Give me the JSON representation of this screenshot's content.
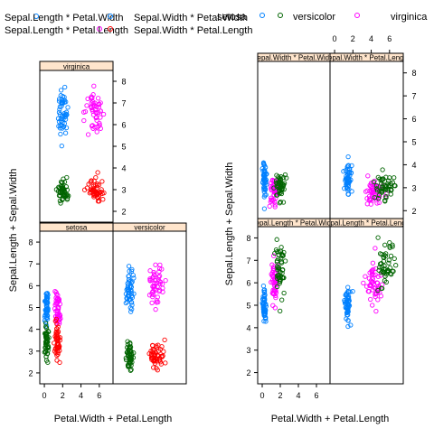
{
  "colors": {
    "blue": "#0080ff",
    "magenta": "#ff00ff",
    "green": "#006400",
    "red": "#ff0000",
    "strip_bg": "#ffe5cc",
    "frame": "#000000"
  },
  "legend_left": {
    "entries": [
      {
        "label": "Sepal.Length * Petal.Width",
        "color": "#0080ff"
      },
      {
        "label": "Sepal.Width * Petal.Width",
        "color": "#0080ff"
      },
      {
        "label": "Sepal.Length * Petal.Length",
        "color": "#ff00ff"
      },
      {
        "label": "Sepal.Width * Petal.Length",
        "color": "#ff0000"
      }
    ]
  },
  "legend_right": {
    "entries": [
      {
        "label": "setosa",
        "color": "#0080ff"
      },
      {
        "label": "versicolor",
        "color": "#006400"
      },
      {
        "label": "virginica",
        "color": "#ff00ff"
      }
    ]
  },
  "chart_data": [
    {
      "type": "scatter",
      "xlabel": "Petal.Width + Petal.Length",
      "ylabel": "Sepal.Length + Sepal.Width",
      "xlim": [
        -0.5,
        7.5
      ],
      "ylim": [
        1.5,
        8.5
      ],
      "xticks": [
        0,
        2,
        4,
        6
      ],
      "yticks": [
        2,
        3,
        4,
        5,
        6,
        7,
        8
      ],
      "panels": [
        {
          "strip": "virginica",
          "groups": [
            {
              "name": "Sepal.Length * Petal.Width",
              "color": "#0080ff",
              "x_mean": 2.0,
              "x_sd": 0.27,
              "y_mean": 6.6,
              "y_sd": 0.6
            },
            {
              "name": "Sepal.Length * Petal.Length",
              "color": "#ff00ff",
              "x_mean": 5.5,
              "x_sd": 0.5,
              "y_mean": 6.6,
              "y_sd": 0.6
            },
            {
              "name": "Sepal.Width * Petal.Width",
              "color": "#006400",
              "x_mean": 2.0,
              "x_sd": 0.27,
              "y_mean": 3.0,
              "y_sd": 0.3
            },
            {
              "name": "Sepal.Width * Petal.Length",
              "color": "#ff0000",
              "x_mean": 5.5,
              "x_sd": 0.5,
              "y_mean": 3.0,
              "y_sd": 0.3
            }
          ]
        },
        {
          "strip": "setosa",
          "groups": [
            {
              "name": "Sepal.Length * Petal.Width",
              "color": "#0080ff",
              "x_mean": 0.25,
              "x_sd": 0.1,
              "y_mean": 5.0,
              "y_sd": 0.35
            },
            {
              "name": "Sepal.Length * Petal.Length",
              "color": "#ff00ff",
              "x_mean": 1.46,
              "x_sd": 0.17,
              "y_mean": 5.0,
              "y_sd": 0.35
            },
            {
              "name": "Sepal.Width * Petal.Width",
              "color": "#006400",
              "x_mean": 0.25,
              "x_sd": 0.1,
              "y_mean": 3.4,
              "y_sd": 0.38
            },
            {
              "name": "Sepal.Width * Petal.Length",
              "color": "#ff0000",
              "x_mean": 1.46,
              "x_sd": 0.17,
              "y_mean": 3.4,
              "y_sd": 0.38
            }
          ]
        },
        {
          "strip": "versicolor",
          "groups": [
            {
              "name": "Sepal.Length * Petal.Width",
              "color": "#0080ff",
              "x_mean": 1.33,
              "x_sd": 0.2,
              "y_mean": 5.9,
              "y_sd": 0.5
            },
            {
              "name": "Sepal.Length * Petal.Length",
              "color": "#ff00ff",
              "x_mean": 4.26,
              "x_sd": 0.47,
              "y_mean": 5.9,
              "y_sd": 0.5
            },
            {
              "name": "Sepal.Width * Petal.Width",
              "color": "#006400",
              "x_mean": 1.33,
              "x_sd": 0.2,
              "y_mean": 2.77,
              "y_sd": 0.3
            },
            {
              "name": "Sepal.Width * Petal.Length",
              "color": "#ff0000",
              "x_mean": 4.26,
              "x_sd": 0.47,
              "y_mean": 2.77,
              "y_sd": 0.3
            }
          ]
        }
      ]
    },
    {
      "type": "scatter",
      "xlabel": "Petal.Width + Petal.Length",
      "ylabel": "Sepal.Length + Sepal.Width",
      "xlim": [
        -0.5,
        7.5
      ],
      "ylim": [
        1.5,
        8.5
      ],
      "xticks": [
        0,
        2,
        4,
        6
      ],
      "yticks": [
        2,
        3,
        4,
        5,
        6,
        7,
        8
      ],
      "panels": [
        {
          "strip": "Sepal.Width * Petal.Width",
          "groups": [
            {
              "name": "setosa",
              "color": "#0080ff",
              "x_mean": 0.25,
              "x_sd": 0.1,
              "y_mean": 3.4,
              "y_sd": 0.38
            },
            {
              "name": "virginica",
              "color": "#ff00ff",
              "x_mean": 1.33,
              "x_sd": 0.2,
              "y_mean": 2.77,
              "y_sd": 0.3
            },
            {
              "name": "versicolor",
              "color": "#006400",
              "x_mean": 2.0,
              "x_sd": 0.27,
              "y_mean": 3.0,
              "y_sd": 0.3
            }
          ]
        },
        {
          "strip": "Sepal.Width * Petal.Length",
          "groups": [
            {
              "name": "setosa",
              "color": "#0080ff",
              "x_mean": 1.46,
              "x_sd": 0.17,
              "y_mean": 3.4,
              "y_sd": 0.38
            },
            {
              "name": "virginica",
              "color": "#ff00ff",
              "x_mean": 4.26,
              "x_sd": 0.47,
              "y_mean": 2.77,
              "y_sd": 0.3
            },
            {
              "name": "versicolor",
              "color": "#006400",
              "x_mean": 5.55,
              "x_sd": 0.55,
              "y_mean": 3.0,
              "y_sd": 0.3
            }
          ]
        },
        {
          "strip": "Sepal.Length * Petal.Width",
          "groups": [
            {
              "name": "setosa",
              "color": "#0080ff",
              "x_mean": 0.25,
              "x_sd": 0.1,
              "y_mean": 5.0,
              "y_sd": 0.35
            },
            {
              "name": "virginica",
              "color": "#ff00ff",
              "x_mean": 1.33,
              "x_sd": 0.2,
              "y_mean": 5.9,
              "y_sd": 0.5
            },
            {
              "name": "versicolor",
              "color": "#006400",
              "x_mean": 2.0,
              "x_sd": 0.27,
              "y_mean": 6.6,
              "y_sd": 0.6
            }
          ]
        },
        {
          "strip": "Sepal.Length * Petal.Length",
          "groups": [
            {
              "name": "setosa",
              "color": "#0080ff",
              "x_mean": 1.46,
              "x_sd": 0.17,
              "y_mean": 5.0,
              "y_sd": 0.35
            },
            {
              "name": "virginica",
              "color": "#ff00ff",
              "x_mean": 4.26,
              "x_sd": 0.47,
              "y_mean": 5.9,
              "y_sd": 0.5
            },
            {
              "name": "versicolor",
              "color": "#006400",
              "x_mean": 5.55,
              "x_sd": 0.55,
              "y_mean": 6.6,
              "y_sd": 0.6
            }
          ]
        }
      ]
    }
  ]
}
